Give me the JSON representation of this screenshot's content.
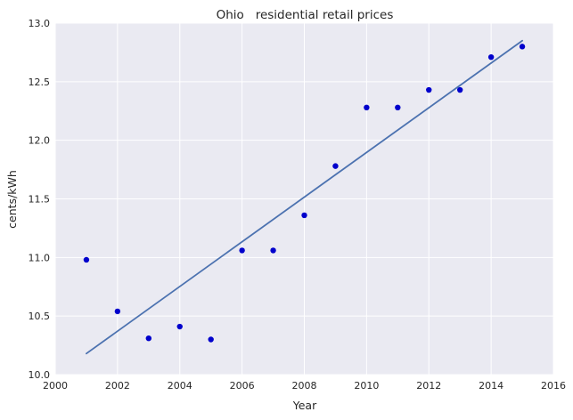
{
  "chart_data": {
    "type": "scatter",
    "title": "Ohio   residential retail prices",
    "xlabel": "Year",
    "ylabel": "cents/kWh",
    "xlim": [
      2000,
      2016
    ],
    "ylim": [
      10.0,
      13.0
    ],
    "xticks": [
      "2000",
      "2002",
      "2004",
      "2006",
      "2008",
      "2010",
      "2012",
      "2014",
      "2016"
    ],
    "yticks": [
      "10.0",
      "10.5",
      "11.0",
      "11.5",
      "12.0",
      "12.5",
      "13.0"
    ],
    "grid": true,
    "background_color": "#EAEAF2",
    "points": {
      "x": [
        2001,
        2002,
        2003,
        2004,
        2005,
        2006,
        2007,
        2008,
        2009,
        2010,
        2011,
        2012,
        2013,
        2014,
        2015
      ],
      "y": [
        10.98,
        10.54,
        10.31,
        10.41,
        10.3,
        11.06,
        11.06,
        11.36,
        11.78,
        12.28,
        12.28,
        12.43,
        12.43,
        12.71,
        12.8
      ],
      "color": "#0000CC"
    },
    "fit_line": {
      "x": [
        2001,
        2015
      ],
      "y": [
        10.18,
        12.85
      ],
      "color": "#4C72B0"
    }
  }
}
